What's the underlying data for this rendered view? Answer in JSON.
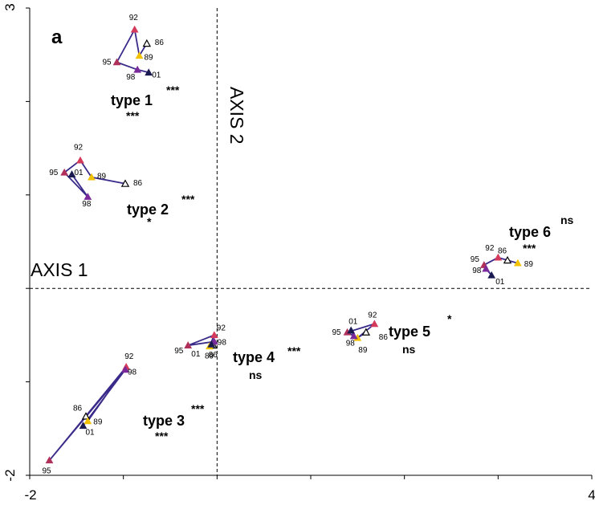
{
  "chart_data": {
    "type": "scatter",
    "panel_label": "a",
    "xlabel": "AXIS 1",
    "ylabel": "AXIS 2",
    "xlim": [
      -2,
      4
    ],
    "ylim": [
      -2,
      3
    ],
    "x_tick_labels": [
      "-2",
      "4"
    ],
    "y_tick_labels": [
      "3",
      "-2"
    ],
    "grid": false,
    "zero_lines": "dashed",
    "year_order": [
      "86",
      "89",
      "92",
      "95",
      "98",
      "01"
    ],
    "colors": {
      "86": "#1a1a1a",
      "89": "#f2c200",
      "92": "#d43a5a",
      "95": "#b0305a",
      "98": "#7a2a9a",
      "01": "#1a1a50",
      "trajectory": "#3a2a8a"
    },
    "series": [
      {
        "label": "type 1",
        "sig_a": "***",
        "sig_b": "***",
        "points": [
          {
            "year": "86",
            "x": -0.75,
            "y": 2.62
          },
          {
            "year": "89",
            "x": -0.83,
            "y": 2.49
          },
          {
            "year": "92",
            "x": -0.88,
            "y": 2.77
          },
          {
            "year": "95",
            "x": -1.07,
            "y": 2.42
          },
          {
            "year": "98",
            "x": -0.85,
            "y": 2.34
          },
          {
            "year": "01",
            "x": -0.73,
            "y": 2.31
          }
        ]
      },
      {
        "label": "type 2",
        "sig_a": "***",
        "sig_b": "*",
        "points": [
          {
            "year": "86",
            "x": -0.98,
            "y": 1.12
          },
          {
            "year": "89",
            "x": -1.34,
            "y": 1.19
          },
          {
            "year": "92",
            "x": -1.46,
            "y": 1.37
          },
          {
            "year": "95",
            "x": -1.63,
            "y": 1.24
          },
          {
            "year": "98",
            "x": -1.38,
            "y": 0.98
          },
          {
            "year": "01",
            "x": -1.55,
            "y": 1.22
          }
        ]
      },
      {
        "label": "type 3",
        "sig_a": "***",
        "sig_b": "***",
        "points": [
          {
            "year": "86",
            "x": -1.4,
            "y": -1.37
          },
          {
            "year": "89",
            "x": -1.38,
            "y": -1.42
          },
          {
            "year": "92",
            "x": -0.97,
            "y": -0.84
          },
          {
            "year": "95",
            "x": -1.79,
            "y": -1.84
          },
          {
            "year": "98",
            "x": -0.98,
            "y": -0.87
          },
          {
            "year": "01",
            "x": -1.43,
            "y": -1.47
          }
        ]
      },
      {
        "label": "type 4",
        "sig_a": "***",
        "sig_b": "ns",
        "points": [
          {
            "year": "86",
            "x": -0.04,
            "y": -0.61
          },
          {
            "year": "89",
            "x": -0.08,
            "y": -0.62
          },
          {
            "year": "92",
            "x": -0.03,
            "y": -0.5
          },
          {
            "year": "95",
            "x": -0.31,
            "y": -0.61
          },
          {
            "year": "98",
            "x": -0.03,
            "y": -0.57
          },
          {
            "year": "01",
            "x": -0.06,
            "y": -0.6
          }
        ]
      },
      {
        "label": "type 5",
        "sig_a": "*",
        "sig_b": "ns",
        "points": [
          {
            "year": "86",
            "x": 1.59,
            "y": -0.47
          },
          {
            "year": "89",
            "x": 1.5,
            "y": -0.53
          },
          {
            "year": "92",
            "x": 1.68,
            "y": -0.38
          },
          {
            "year": "95",
            "x": 1.39,
            "y": -0.47
          },
          {
            "year": "98",
            "x": 1.46,
            "y": -0.51
          },
          {
            "year": "01",
            "x": 1.43,
            "y": -0.45
          }
        ]
      },
      {
        "label": "type 6",
        "sig_a": "ns",
        "sig_b": "***",
        "points": [
          {
            "year": "86",
            "x": 3.1,
            "y": 0.3
          },
          {
            "year": "89",
            "x": 3.21,
            "y": 0.27
          },
          {
            "year": "92",
            "x": 3.0,
            "y": 0.33
          },
          {
            "year": "95",
            "x": 2.85,
            "y": 0.25
          },
          {
            "year": "98",
            "x": 2.87,
            "y": 0.21
          },
          {
            "year": "01",
            "x": 2.93,
            "y": 0.14
          }
        ]
      }
    ]
  }
}
